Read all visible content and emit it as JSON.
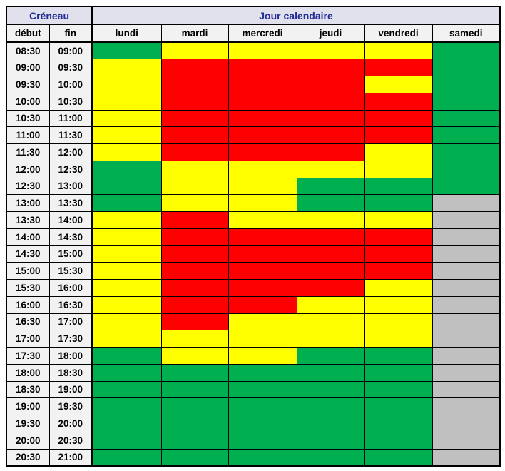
{
  "table": {
    "header": {
      "creneau_label": "Créneau",
      "jour_label": "Jour calendaire",
      "columns": [
        "début",
        "fin",
        "lundi",
        "mardi",
        "mercredi",
        "jeudi",
        "vendredi",
        "samedi"
      ]
    },
    "colors": {
      "green": "#00b050",
      "yellow": "#ffff00",
      "red": "#ff0000",
      "gray": "#c0c0c0",
      "header_top_bg": "#e1e1ed",
      "header_top_text": "#222c94",
      "header_sub_bg": "#f2f2f2"
    },
    "rows": [
      {
        "debut": "08:30",
        "fin": "09:00",
        "cells": [
          "green",
          "yellow",
          "yellow",
          "yellow",
          "yellow",
          "green"
        ]
      },
      {
        "debut": "09:00",
        "fin": "09:30",
        "cells": [
          "yellow",
          "red",
          "red",
          "red",
          "red",
          "green"
        ]
      },
      {
        "debut": "09:30",
        "fin": "10:00",
        "cells": [
          "yellow",
          "red",
          "red",
          "red",
          "yellow",
          "green"
        ]
      },
      {
        "debut": "10:00",
        "fin": "10:30",
        "cells": [
          "yellow",
          "red",
          "red",
          "red",
          "red",
          "green"
        ]
      },
      {
        "debut": "10:30",
        "fin": "11:00",
        "cells": [
          "yellow",
          "red",
          "red",
          "red",
          "red",
          "green"
        ]
      },
      {
        "debut": "11:00",
        "fin": "11:30",
        "cells": [
          "yellow",
          "red",
          "red",
          "red",
          "red",
          "green"
        ]
      },
      {
        "debut": "11:30",
        "fin": "12:00",
        "cells": [
          "yellow",
          "red",
          "red",
          "red",
          "yellow",
          "green"
        ]
      },
      {
        "debut": "12:00",
        "fin": "12:30",
        "cells": [
          "green",
          "yellow",
          "yellow",
          "yellow",
          "yellow",
          "green"
        ]
      },
      {
        "debut": "12:30",
        "fin": "13:00",
        "cells": [
          "green",
          "yellow",
          "yellow",
          "green",
          "green",
          "green"
        ]
      },
      {
        "debut": "13:00",
        "fin": "13:30",
        "cells": [
          "green",
          "yellow",
          "yellow",
          "green",
          "green",
          "gray"
        ]
      },
      {
        "debut": "13:30",
        "fin": "14:00",
        "cells": [
          "yellow",
          "red",
          "yellow",
          "yellow",
          "yellow",
          "gray"
        ]
      },
      {
        "debut": "14:00",
        "fin": "14:30",
        "cells": [
          "yellow",
          "red",
          "red",
          "red",
          "red",
          "gray"
        ]
      },
      {
        "debut": "14:30",
        "fin": "15:00",
        "cells": [
          "yellow",
          "red",
          "red",
          "red",
          "red",
          "gray"
        ]
      },
      {
        "debut": "15:00",
        "fin": "15:30",
        "cells": [
          "yellow",
          "red",
          "red",
          "red",
          "red",
          "gray"
        ]
      },
      {
        "debut": "15:30",
        "fin": "16:00",
        "cells": [
          "yellow",
          "red",
          "red",
          "red",
          "yellow",
          "gray"
        ]
      },
      {
        "debut": "16:00",
        "fin": "16:30",
        "cells": [
          "yellow",
          "red",
          "red",
          "yellow",
          "yellow",
          "gray"
        ]
      },
      {
        "debut": "16:30",
        "fin": "17:00",
        "cells": [
          "yellow",
          "red",
          "yellow",
          "yellow",
          "yellow",
          "gray"
        ]
      },
      {
        "debut": "17:00",
        "fin": "17:30",
        "cells": [
          "yellow",
          "yellow",
          "yellow",
          "yellow",
          "yellow",
          "gray"
        ]
      },
      {
        "debut": "17:30",
        "fin": "18:00",
        "cells": [
          "green",
          "yellow",
          "yellow",
          "green",
          "green",
          "gray"
        ]
      },
      {
        "debut": "18:00",
        "fin": "18:30",
        "cells": [
          "green",
          "green",
          "green",
          "green",
          "green",
          "gray"
        ]
      },
      {
        "debut": "18:30",
        "fin": "19:00",
        "cells": [
          "green",
          "green",
          "green",
          "green",
          "green",
          "gray"
        ]
      },
      {
        "debut": "19:00",
        "fin": "19:30",
        "cells": [
          "green",
          "green",
          "green",
          "green",
          "green",
          "gray"
        ]
      },
      {
        "debut": "19:30",
        "fin": "20:00",
        "cells": [
          "green",
          "green",
          "green",
          "green",
          "green",
          "gray"
        ]
      },
      {
        "debut": "20:00",
        "fin": "20:30",
        "cells": [
          "green",
          "green",
          "green",
          "green",
          "green",
          "gray"
        ]
      },
      {
        "debut": "20:30",
        "fin": "21:00",
        "cells": [
          "green",
          "green",
          "green",
          "green",
          "green",
          "gray"
        ]
      }
    ]
  }
}
